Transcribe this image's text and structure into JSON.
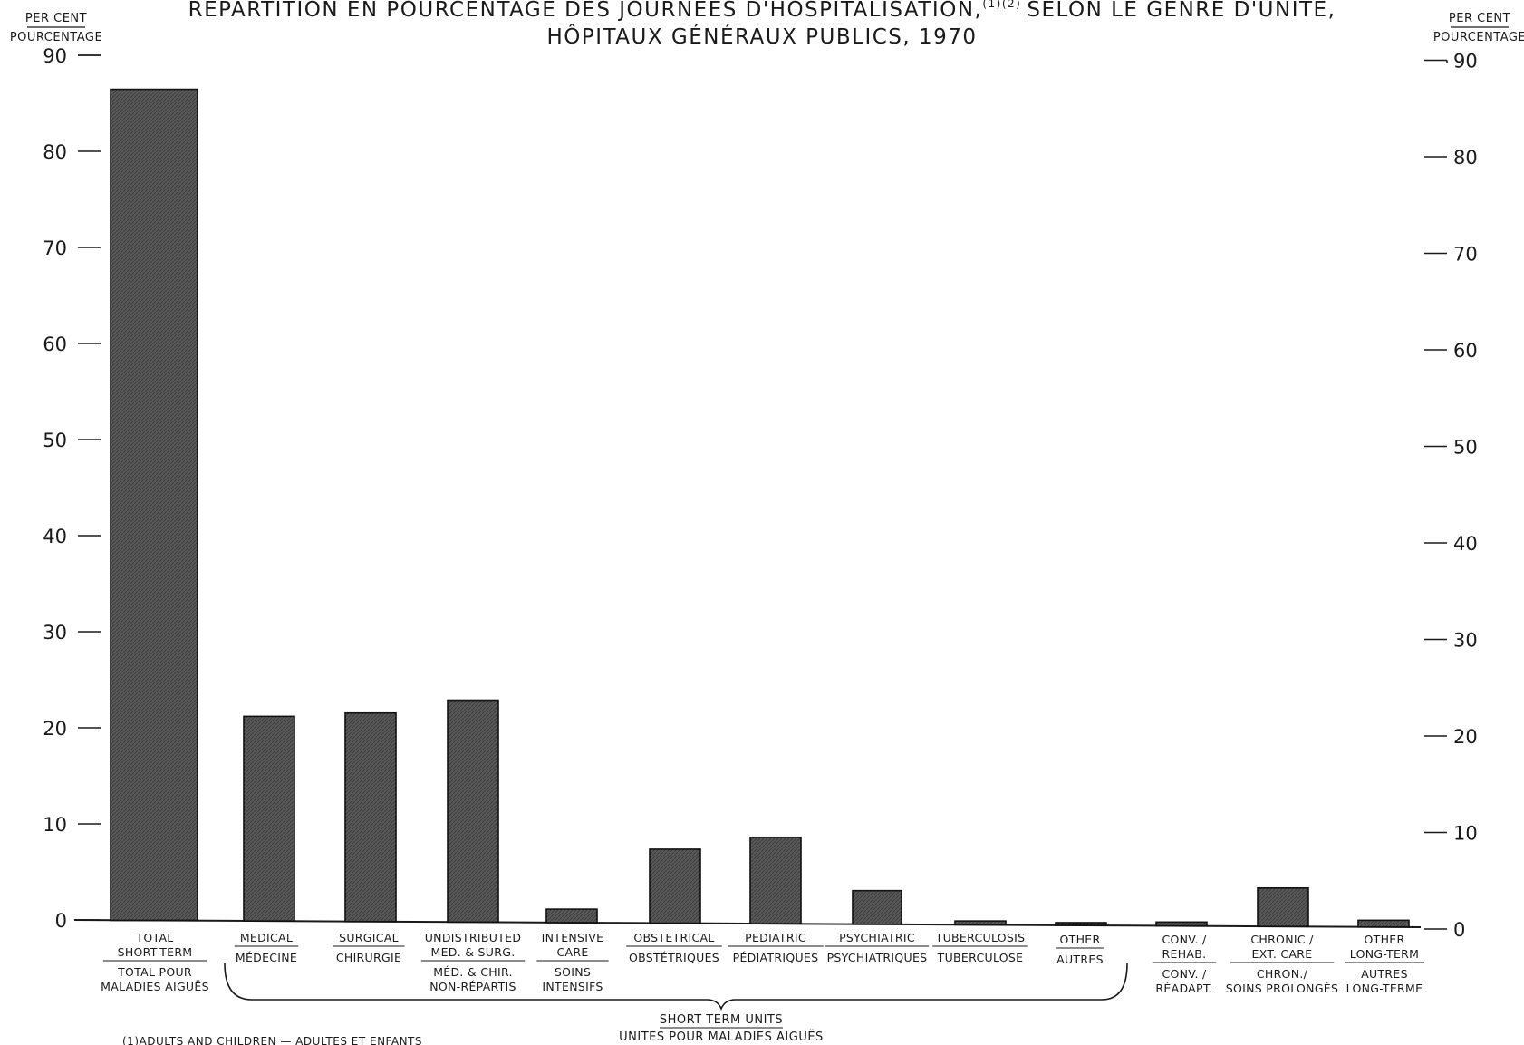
{
  "chart_data": {
    "type": "bar",
    "title_line1": "RÉPARTITION EN POURCENTAGE DES JOURNÉES D'HOSPITALISATION,",
    "title_superscript": "(1)(2)",
    "title_line1_end": "SELON LE GENRE D'UNITÉ,",
    "title_line2": "HÔPITAUX GÉNÉRAUX PUBLICS, 1970",
    "ylabel_left": [
      "PER CENT",
      "POURCENTAGE"
    ],
    "ylabel_right": [
      "PER CENT",
      "POURCENTAGE"
    ],
    "ylim": [
      0,
      90
    ],
    "yticks": [
      0,
      10,
      20,
      30,
      40,
      50,
      60,
      70,
      80,
      90
    ],
    "grid": false,
    "categories": [
      [
        "TOTAL",
        "SHORT-TERM",
        "TOTAL POUR",
        "MALADIES AIGUËS"
      ],
      [
        "MEDICAL",
        "MÉDECINE"
      ],
      [
        "SURGICAL",
        "CHIRURGIE"
      ],
      [
        "UNDISTRIBUTED",
        "MED. & SURG.",
        "MÉD. & CHIR.",
        "NON-RÉPARTIS"
      ],
      [
        "INTENSIVE",
        "CARE",
        "SOINS",
        "INTENSIFS"
      ],
      [
        "OBSTETRICAL",
        "OBSTÉTRIQUES"
      ],
      [
        "PEDIATRIC",
        "PÉDIATRIQUES"
      ],
      [
        "PSYCHIATRIC",
        "PSYCHIATRIQUES"
      ],
      [
        "TUBERCULOSIS",
        "TUBERCULOSE"
      ],
      [
        "OTHER",
        "AUTRES"
      ],
      [
        "CONV. /",
        "REHAB.",
        "CONV. /",
        "RÉADAPT."
      ],
      [
        "CHRONIC /",
        "EXT. CARE",
        "CHRON./",
        "SOINS PROLONGÉS"
      ],
      [
        "OTHER",
        "LONG-TERM",
        "AUTRES",
        "LONG-TERME"
      ]
    ],
    "values": [
      86.5,
      21.3,
      21.7,
      23.1,
      1.4,
      7.7,
      9.0,
      3.5,
      0.4,
      0.2,
      0.4,
      4.0,
      0.7
    ],
    "group_label": [
      "SHORT TERM UNITS",
      "UNITES POUR MALADIES AIGUËS"
    ],
    "footnote": "(1)ADULTS AND CHILDREN — ADULTES ET ENFANTS"
  },
  "colors": {
    "bar": "#565656",
    "ink": "#1a1a1a",
    "background": "#ffffff"
  }
}
